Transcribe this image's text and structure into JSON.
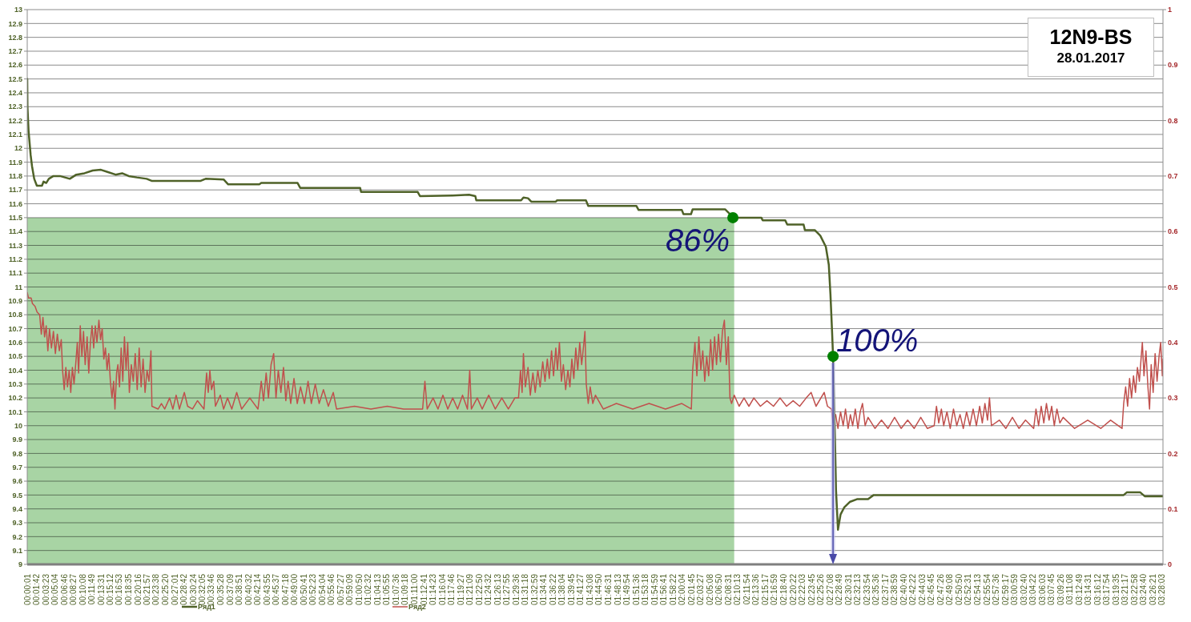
{
  "chart_data": {
    "type": "line",
    "title": "12N9-BS",
    "subtitle": "28.01.2017",
    "xlim": [
      0,
      3.47
    ],
    "xticks": [
      {
        "value": 0.00028,
        "label": "00:00:01"
      },
      {
        "value": 0.02833,
        "label": "00:01:42"
      },
      {
        "value": 0.05639,
        "label": "00:03:23"
      },
      {
        "value": 0.08444,
        "label": "00:05:04"
      },
      {
        "value": 0.11278,
        "label": "00:06:46"
      },
      {
        "value": 0.14083,
        "label": "00:08:27"
      },
      {
        "value": 0.16889,
        "label": "00:10:08"
      },
      {
        "value": 0.19694,
        "label": "00:11:49"
      },
      {
        "value": 0.22528,
        "label": "00:13:31"
      },
      {
        "value": 0.25333,
        "label": "00:15:12"
      },
      {
        "value": 0.28139,
        "label": "00:16:53"
      },
      {
        "value": 0.30972,
        "label": "00:18:35"
      },
      {
        "value": 0.33778,
        "label": "00:20:16"
      },
      {
        "value": 0.36583,
        "label": "00:21:57"
      },
      {
        "value": 0.39389,
        "label": "00:23:38"
      },
      {
        "value": 0.42222,
        "label": "00:25:20"
      },
      {
        "value": 0.45028,
        "label": "00:27:01"
      },
      {
        "value": 0.47833,
        "label": "00:28:42"
      },
      {
        "value": 0.50667,
        "label": "00:30:24"
      },
      {
        "value": 0.53472,
        "label": "00:32:05"
      },
      {
        "value": 0.56278,
        "label": "00:33:46"
      },
      {
        "value": 0.59111,
        "label": "00:35:28"
      },
      {
        "value": 0.61917,
        "label": "00:37:09"
      },
      {
        "value": 0.6475,
        "label": "00:38:51"
      },
      {
        "value": 0.67556,
        "label": "00:40:32"
      },
      {
        "value": 0.70389,
        "label": "00:42:14"
      },
      {
        "value": 0.73194,
        "label": "00:43:55"
      },
      {
        "value": 0.76028,
        "label": "00:45:37"
      },
      {
        "value": 0.78833,
        "label": "00:47:18"
      },
      {
        "value": 0.81667,
        "label": "00:49:00"
      },
      {
        "value": 0.84472,
        "label": "00:50:41"
      },
      {
        "value": 0.87306,
        "label": "00:52:23"
      },
      {
        "value": 0.90111,
        "label": "00:54:04"
      },
      {
        "value": 0.92944,
        "label": "00:55:46"
      },
      {
        "value": 0.9575,
        "label": "00:57:27"
      },
      {
        "value": 0.98583,
        "label": "00:59:09"
      },
      {
        "value": 1.01389,
        "label": "01:00:50"
      },
      {
        "value": 1.04222,
        "label": "01:02:32"
      },
      {
        "value": 1.07028,
        "label": "01:04:13"
      },
      {
        "value": 1.09861,
        "label": "01:05:55"
      },
      {
        "value": 1.12667,
        "label": "01:07:36"
      },
      {
        "value": 1.155,
        "label": "01:09:18"
      },
      {
        "value": 1.18333,
        "label": "01:11:00"
      },
      {
        "value": 1.21139,
        "label": "01:12:41"
      },
      {
        "value": 1.23972,
        "label": "01:14:23"
      },
      {
        "value": 1.26778,
        "label": "01:16:04"
      },
      {
        "value": 1.29611,
        "label": "01:17:46"
      },
      {
        "value": 1.32417,
        "label": "01:19:27"
      },
      {
        "value": 1.3525,
        "label": "01:21:09"
      },
      {
        "value": 1.38056,
        "label": "01:22:50"
      },
      {
        "value": 1.40889,
        "label": "01:24:32"
      },
      {
        "value": 1.43694,
        "label": "01:26:13"
      },
      {
        "value": 1.46528,
        "label": "01:27:55"
      },
      {
        "value": 1.49333,
        "label": "01:29:36"
      },
      {
        "value": 1.52167,
        "label": "01:31:18"
      },
      {
        "value": 1.54972,
        "label": "01:32:59"
      },
      {
        "value": 1.57806,
        "label": "01:34:41"
      },
      {
        "value": 1.60611,
        "label": "01:36:22"
      },
      {
        "value": 1.63444,
        "label": "01:38:04"
      },
      {
        "value": 1.6625,
        "label": "01:39:45"
      },
      {
        "value": 1.69083,
        "label": "01:41:27"
      },
      {
        "value": 1.71889,
        "label": "01:43:08"
      },
      {
        "value": 1.74722,
        "label": "01:44:50"
      },
      {
        "value": 1.77528,
        "label": "01:46:31"
      },
      {
        "value": 1.80361,
        "label": "01:48:13"
      },
      {
        "value": 1.83167,
        "label": "01:49:54"
      },
      {
        "value": 1.86,
        "label": "01:51:36"
      },
      {
        "value": 1.88833,
        "label": "01:53:18"
      },
      {
        "value": 1.91639,
        "label": "01:54:59"
      },
      {
        "value": 1.94472,
        "label": "01:56:41"
      },
      {
        "value": 1.97278,
        "label": "01:58:22"
      },
      {
        "value": 2.00111,
        "label": "02:00:04"
      },
      {
        "value": 2.02917,
        "label": "02:01:45"
      },
      {
        "value": 2.0575,
        "label": "02:03:27"
      },
      {
        "value": 2.08556,
        "label": "02:05:08"
      },
      {
        "value": 2.11389,
        "label": "02:06:50"
      },
      {
        "value": 2.14194,
        "label": "02:08:31"
      },
      {
        "value": 2.17028,
        "label": "02:10:13"
      },
      {
        "value": 2.19833,
        "label": "02:11:54"
      },
      {
        "value": 2.22667,
        "label": "02:13:36"
      },
      {
        "value": 2.25472,
        "label": "02:15:17"
      },
      {
        "value": 2.28306,
        "label": "02:16:59"
      },
      {
        "value": 2.31111,
        "label": "02:18:40"
      },
      {
        "value": 2.33944,
        "label": "02:20:22"
      },
      {
        "value": 2.3675,
        "label": "02:22:03"
      },
      {
        "value": 2.39583,
        "label": "02:23:45"
      },
      {
        "value": 2.42389,
        "label": "02:25:26"
      },
      {
        "value": 2.45222,
        "label": "02:27:08"
      },
      {
        "value": 2.48028,
        "label": "02:28:49"
      },
      {
        "value": 2.50861,
        "label": "02:30:31"
      },
      {
        "value": 2.53694,
        "label": "02:32:13"
      },
      {
        "value": 2.565,
        "label": "02:33:54"
      },
      {
        "value": 2.59333,
        "label": "02:35:36"
      },
      {
        "value": 2.62139,
        "label": "02:37:17"
      },
      {
        "value": 2.64972,
        "label": "02:38:59"
      },
      {
        "value": 2.67778,
        "label": "02:40:40"
      },
      {
        "value": 2.70611,
        "label": "02:42:22"
      },
      {
        "value": 2.73417,
        "label": "02:44:03"
      },
      {
        "value": 2.7625,
        "label": "02:45:45"
      },
      {
        "value": 2.79056,
        "label": "02:47:26"
      },
      {
        "value": 2.81889,
        "label": "02:49:08"
      },
      {
        "value": 2.84722,
        "label": "02:50:50"
      },
      {
        "value": 2.87528,
        "label": "02:52:31"
      },
      {
        "value": 2.90361,
        "label": "02:54:13"
      },
      {
        "value": 2.93167,
        "label": "02:55:54"
      },
      {
        "value": 2.96,
        "label": "02:57:36"
      },
      {
        "value": 2.98806,
        "label": "02:59:17"
      },
      {
        "value": 3.01639,
        "label": "03:00:59"
      },
      {
        "value": 3.04444,
        "label": "03:02:40"
      },
      {
        "value": 3.07278,
        "label": "03:04:22"
      },
      {
        "value": 3.10083,
        "label": "03:06:03"
      },
      {
        "value": 3.12917,
        "label": "03:07:45"
      },
      {
        "value": 3.15722,
        "label": "03:09:26"
      },
      {
        "value": 3.18556,
        "label": "03:11:08"
      },
      {
        "value": 3.21361,
        "label": "03:12:49"
      },
      {
        "value": 3.24194,
        "label": "03:14:31"
      },
      {
        "value": 3.27,
        "label": "03:16:12"
      },
      {
        "value": 3.29833,
        "label": "03:17:54"
      },
      {
        "value": 3.32639,
        "label": "03:19:35"
      },
      {
        "value": 3.35472,
        "label": "03:21:17"
      },
      {
        "value": 3.38278,
        "label": "03:22:58"
      },
      {
        "value": 3.41111,
        "label": "03:24:40"
      },
      {
        "value": 3.43917,
        "label": "03:26:21"
      },
      {
        "value": 3.4675,
        "label": "03:28:03"
      }
    ],
    "ylim": [
      9,
      13
    ],
    "yticks": [
      9,
      9.1,
      9.2,
      9.3,
      9.4,
      9.5,
      9.6,
      9.7,
      9.8,
      9.9,
      10,
      10.1,
      10.2,
      10.3,
      10.4,
      10.5,
      10.6,
      10.7,
      10.8,
      10.9,
      11,
      11.1,
      11.2,
      11.3,
      11.4,
      11.5,
      11.6,
      11.7,
      11.8,
      11.9,
      12,
      12.1,
      12.2,
      12.3,
      12.4,
      12.5,
      12.6,
      12.7,
      12.8,
      12.9,
      13
    ],
    "y2lim": [
      0,
      1
    ],
    "y2ticks": [
      0,
      0.1,
      0.2,
      0.3,
      0.4,
      0.5,
      0.6,
      0.7,
      0.8,
      0.9,
      1
    ],
    "grid": "y",
    "legend": "bottom",
    "series": [
      {
        "name": "Ряд1",
        "color": "#4f6228",
        "x": [
          0,
          0.0007,
          0.0042,
          0.0105,
          0.0147,
          0.0213,
          0.0294,
          0.045,
          0.05,
          0.058,
          0.066,
          0.08,
          0.1,
          0.115,
          0.13,
          0.15,
          0.175,
          0.2,
          0.225,
          0.245,
          0.27,
          0.29,
          0.31,
          0.335,
          0.365,
          0.38,
          0.53,
          0.545,
          0.6,
          0.614,
          0.709,
          0.715,
          0.826,
          0.834,
          1.017,
          1.02,
          1.193,
          1.2,
          1.3,
          1.35,
          1.369,
          1.372,
          1.509,
          1.516,
          1.53,
          1.54,
          1.615,
          1.619,
          1.707,
          1.714,
          1.861,
          1.868,
          2.0,
          2.005,
          2.028,
          2.033,
          2.132,
          2.145,
          2.156,
          2.243,
          2.247,
          2.316,
          2.322,
          2.372,
          2.376,
          2.406,
          2.423,
          2.44,
          2.449,
          2.454,
          2.459,
          2.462,
          2.468,
          2.471,
          2.477,
          2.485,
          2.496,
          2.513,
          2.535,
          2.569,
          2.586,
          3.35,
          3.36,
          3.4,
          3.415,
          3.47
        ],
        "values": [
          12.5,
          12.3,
          12.12,
          11.95,
          11.87,
          11.78,
          11.73,
          11.73,
          11.76,
          11.75,
          11.78,
          11.8,
          11.8,
          11.79,
          11.78,
          11.81,
          11.82,
          11.84,
          11.845,
          11.83,
          11.81,
          11.82,
          11.8,
          11.79,
          11.78,
          11.765,
          11.765,
          11.78,
          11.775,
          11.74,
          11.74,
          11.75,
          11.75,
          11.715,
          11.715,
          11.685,
          11.685,
          11.655,
          11.66,
          11.665,
          11.655,
          11.625,
          11.625,
          11.645,
          11.64,
          11.615,
          11.615,
          11.625,
          11.625,
          11.585,
          11.585,
          11.555,
          11.555,
          11.525,
          11.525,
          11.56,
          11.56,
          11.53,
          11.5,
          11.5,
          11.48,
          11.48,
          11.45,
          11.45,
          11.41,
          11.41,
          11.37,
          11.29,
          11.16,
          10.95,
          10.68,
          10.5,
          9.89,
          9.54,
          9.25,
          9.36,
          9.41,
          9.45,
          9.47,
          9.47,
          9.5,
          9.5,
          9.52,
          9.52,
          9.49,
          9.49
        ]
      },
      {
        "name": "Ряд2",
        "color": "#c0504d",
        "axis": "y2",
        "x": [
          0,
          0.004,
          0.012,
          0.016,
          0.024,
          0.03,
          0.038,
          0.043,
          0.048,
          0.053,
          0.058,
          0.063,
          0.068,
          0.074,
          0.08,
          0.086,
          0.092,
          0.098,
          0.104,
          0.108,
          0.113,
          0.118,
          0.123,
          0.128,
          0.133,
          0.138,
          0.143,
          0.148,
          0.153,
          0.157,
          0.162,
          0.167,
          0.172,
          0.177,
          0.183,
          0.188,
          0.193,
          0.198,
          0.203,
          0.208,
          0.213,
          0.219,
          0.224,
          0.229,
          0.234,
          0.239,
          0.244,
          0.249,
          0.254,
          0.259,
          0.264,
          0.268,
          0.273,
          0.277,
          0.282,
          0.287,
          0.292,
          0.297,
          0.302,
          0.307,
          0.312,
          0.318,
          0.324,
          0.33,
          0.336,
          0.342,
          0.348,
          0.354,
          0.36,
          0.366,
          0.372,
          0.378,
          0.381,
          0.4,
          0.41,
          0.42,
          0.435,
          0.445,
          0.455,
          0.465,
          0.48,
          0.49,
          0.505,
          0.52,
          0.54,
          0.548,
          0.553,
          0.558,
          0.563,
          0.57,
          0.575,
          0.59,
          0.6,
          0.612,
          0.625,
          0.64,
          0.655,
          0.68,
          0.705,
          0.715,
          0.722,
          0.73,
          0.737,
          0.745,
          0.753,
          0.76,
          0.767,
          0.775,
          0.783,
          0.79,
          0.797,
          0.805,
          0.815,
          0.825,
          0.835,
          0.847,
          0.858,
          0.868,
          0.88,
          0.892,
          0.905,
          0.92,
          0.935,
          0.945,
          1.0,
          1.05,
          1.1,
          1.15,
          1.208,
          1.215,
          1.222,
          1.24,
          1.255,
          1.27,
          1.285,
          1.3,
          1.315,
          1.33,
          1.345,
          1.352,
          1.357,
          1.375,
          1.39,
          1.41,
          1.43,
          1.45,
          1.47,
          1.49,
          1.501,
          1.507,
          1.512,
          1.516,
          1.522,
          1.53,
          1.537,
          1.545,
          1.552,
          1.56,
          1.567,
          1.575,
          1.582,
          1.589,
          1.595,
          1.602,
          1.608,
          1.615,
          1.62,
          1.626,
          1.632,
          1.638,
          1.645,
          1.652,
          1.658,
          1.664,
          1.67,
          1.676,
          1.682,
          1.688,
          1.694,
          1.7,
          1.704,
          1.708,
          1.714,
          1.72,
          1.728,
          1.736,
          1.76,
          1.8,
          1.85,
          1.9,
          1.95,
          2.0,
          2.029,
          2.033,
          2.04,
          2.046,
          2.052,
          2.058,
          2.064,
          2.07,
          2.076,
          2.082,
          2.088,
          2.094,
          2.1,
          2.106,
          2.112,
          2.118,
          2.124,
          2.13,
          2.136,
          2.142,
          2.147,
          2.152,
          2.16,
          2.175,
          2.19,
          2.205,
          2.22,
          2.24,
          2.26,
          2.28,
          2.3,
          2.32,
          2.34,
          2.36,
          2.38,
          2.395,
          2.41,
          2.435,
          2.445,
          2.457,
          2.462,
          2.47,
          2.477,
          2.485,
          2.493,
          2.5,
          2.508,
          2.515,
          2.522,
          2.53,
          2.538,
          2.545,
          2.552,
          2.56,
          2.569,
          2.59,
          2.61,
          2.63,
          2.65,
          2.67,
          2.69,
          2.71,
          2.73,
          2.75,
          2.771,
          2.778,
          2.785,
          2.793,
          2.8,
          2.81,
          2.82,
          2.83,
          2.84,
          2.85,
          2.86,
          2.87,
          2.88,
          2.89,
          2.9,
          2.91,
          2.918,
          2.926,
          2.934,
          2.94,
          2.946,
          2.97,
          2.99,
          3.01,
          3.03,
          3.05,
          3.075,
          3.082,
          3.09,
          3.098,
          3.106,
          3.114,
          3.122,
          3.13,
          3.138,
          3.146,
          3.155,
          3.165,
          3.2,
          3.24,
          3.28,
          3.31,
          3.345,
          3.35,
          3.356,
          3.362,
          3.368,
          3.374,
          3.38,
          3.386,
          3.392,
          3.398,
          3.403,
          3.407,
          3.412,
          3.418,
          3.424,
          3.429,
          3.434,
          3.44,
          3.446,
          3.452,
          3.458,
          3.463,
          3.468,
          3.47
        ],
        "values": [
          0.49,
          0.48,
          0.48,
          0.47,
          0.465,
          0.455,
          0.45,
          0.415,
          0.445,
          0.41,
          0.43,
          0.385,
          0.425,
          0.39,
          0.42,
          0.38,
          0.415,
          0.385,
          0.405,
          0.35,
          0.315,
          0.355,
          0.32,
          0.35,
          0.31,
          0.355,
          0.325,
          0.36,
          0.4,
          0.345,
          0.43,
          0.375,
          0.42,
          0.36,
          0.41,
          0.345,
          0.4,
          0.43,
          0.39,
          0.43,
          0.4,
          0.44,
          0.405,
          0.425,
          0.37,
          0.39,
          0.35,
          0.38,
          0.33,
          0.3,
          0.33,
          0.28,
          0.345,
          0.36,
          0.32,
          0.39,
          0.33,
          0.41,
          0.35,
          0.4,
          0.31,
          0.36,
          0.33,
          0.38,
          0.315,
          0.39,
          0.32,
          0.37,
          0.31,
          0.35,
          0.33,
          0.385,
          0.285,
          0.28,
          0.29,
          0.28,
          0.3,
          0.28,
          0.305,
          0.28,
          0.31,
          0.285,
          0.28,
          0.295,
          0.28,
          0.345,
          0.31,
          0.35,
          0.315,
          0.33,
          0.285,
          0.305,
          0.28,
          0.3,
          0.28,
          0.31,
          0.28,
          0.3,
          0.28,
          0.33,
          0.295,
          0.345,
          0.3,
          0.36,
          0.38,
          0.3,
          0.35,
          0.31,
          0.355,
          0.295,
          0.33,
          0.29,
          0.335,
          0.29,
          0.32,
          0.29,
          0.33,
          0.29,
          0.325,
          0.29,
          0.315,
          0.285,
          0.31,
          0.28,
          0.285,
          0.28,
          0.285,
          0.28,
          0.28,
          0.33,
          0.28,
          0.3,
          0.28,
          0.305,
          0.28,
          0.3,
          0.28,
          0.305,
          0.28,
          0.35,
          0.28,
          0.3,
          0.28,
          0.305,
          0.28,
          0.3,
          0.28,
          0.3,
          0.3,
          0.35,
          0.31,
          0.38,
          0.32,
          0.355,
          0.305,
          0.345,
          0.31,
          0.35,
          0.32,
          0.365,
          0.33,
          0.37,
          0.335,
          0.385,
          0.34,
          0.39,
          0.35,
          0.4,
          0.33,
          0.36,
          0.315,
          0.35,
          0.32,
          0.37,
          0.335,
          0.39,
          0.35,
          0.4,
          0.36,
          0.395,
          0.42,
          0.325,
          0.29,
          0.32,
          0.29,
          0.305,
          0.28,
          0.29,
          0.28,
          0.29,
          0.28,
          0.29,
          0.28,
          0.35,
          0.4,
          0.34,
          0.41,
          0.35,
          0.385,
          0.33,
          0.375,
          0.34,
          0.405,
          0.35,
          0.41,
          0.36,
          0.415,
          0.365,
          0.42,
          0.44,
          0.36,
          0.41,
          0.3,
          0.29,
          0.305,
          0.285,
          0.3,
          0.285,
          0.3,
          0.285,
          0.295,
          0.285,
          0.3,
          0.285,
          0.295,
          0.285,
          0.3,
          0.31,
          0.285,
          0.31,
          0.285,
          0.28,
          0.255,
          0.27,
          0.245,
          0.275,
          0.25,
          0.28,
          0.245,
          0.27,
          0.25,
          0.28,
          0.245,
          0.275,
          0.29,
          0.25,
          0.265,
          0.245,
          0.26,
          0.245,
          0.265,
          0.245,
          0.26,
          0.245,
          0.265,
          0.245,
          0.25,
          0.285,
          0.255,
          0.28,
          0.25,
          0.275,
          0.245,
          0.28,
          0.25,
          0.27,
          0.245,
          0.275,
          0.25,
          0.28,
          0.25,
          0.285,
          0.255,
          0.29,
          0.26,
          0.3,
          0.25,
          0.26,
          0.245,
          0.265,
          0.245,
          0.26,
          0.245,
          0.28,
          0.25,
          0.285,
          0.255,
          0.29,
          0.26,
          0.285,
          0.25,
          0.28,
          0.255,
          0.265,
          0.245,
          0.26,
          0.245,
          0.26,
          0.245,
          0.29,
          0.32,
          0.285,
          0.335,
          0.3,
          0.34,
          0.31,
          0.355,
          0.33,
          0.37,
          0.4,
          0.34,
          0.385,
          0.32,
          0.28,
          0.36,
          0.31,
          0.38,
          0.33,
          0.375,
          0.4,
          0.34,
          0.37
        ]
      },
      {
        "type": "area",
        "color": "#a8d4a4",
        "x": [
          0,
          2.16
        ],
        "values": [
          11.5,
          11.5
        ]
      },
      {
        "type": "scatter",
        "color": "#008000",
        "marker": "circle",
        "x": [
          2.156,
          2.462
        ],
        "values": [
          11.5,
          10.5
        ]
      }
    ],
    "annotations": [
      {
        "text": "86%",
        "x": 2.156,
        "y": 11.5
      },
      {
        "text": "100%",
        "x": 2.462,
        "y": 10.5
      }
    ]
  }
}
